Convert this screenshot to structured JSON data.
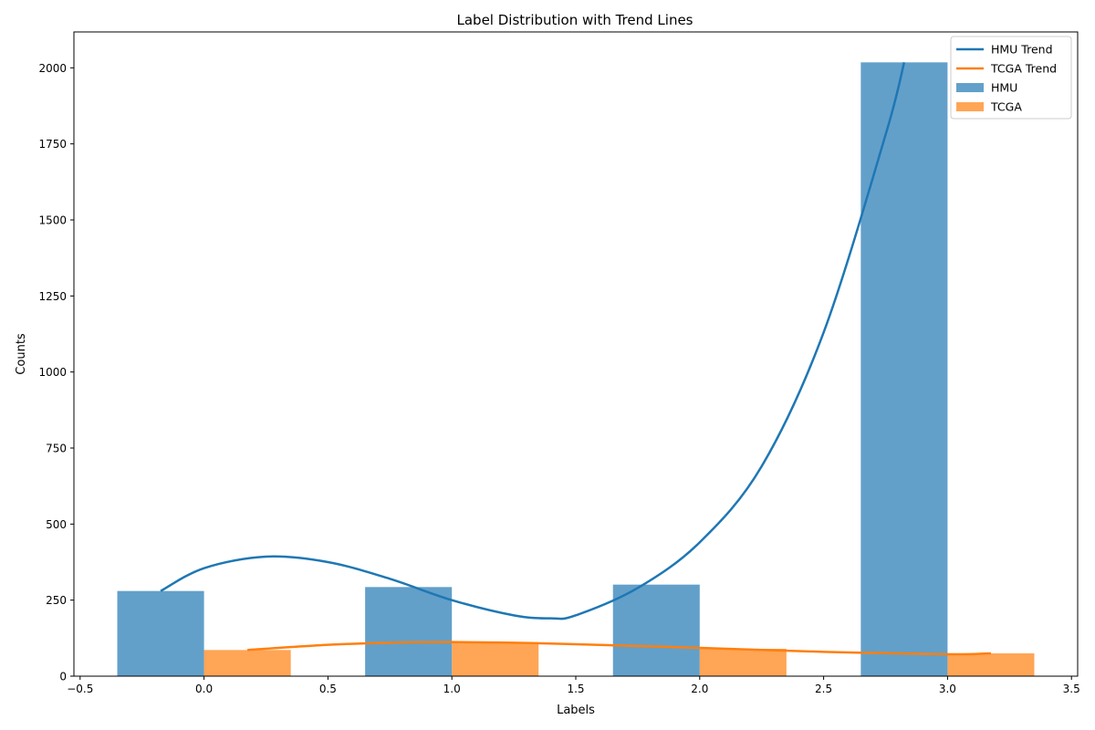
{
  "chart_data": {
    "type": "bar",
    "title": "Label Distribution with Trend Lines",
    "xlabel": "Labels",
    "ylabel": "Counts",
    "xlim": [
      -0.525,
      3.525
    ],
    "ylim": [
      0,
      2118
    ],
    "x_ticks": [
      -0.5,
      0.0,
      0.5,
      1.0,
      1.5,
      2.0,
      2.5,
      3.0,
      3.5
    ],
    "x_tick_labels": [
      "−0.5",
      "0.0",
      "0.5",
      "1.0",
      "1.5",
      "2.0",
      "2.5",
      "3.0",
      "3.5"
    ],
    "y_ticks": [
      0,
      250,
      500,
      750,
      1000,
      1250,
      1500,
      1750,
      2000
    ],
    "y_tick_labels": [
      "0",
      "250",
      "500",
      "750",
      "1000",
      "1250",
      "1500",
      "1750",
      "2000"
    ],
    "categories": [
      0,
      1,
      2,
      3
    ],
    "bar_width": 0.35,
    "grid": false,
    "legend_position": "top-right",
    "series": [
      {
        "name": "HMU",
        "kind": "bar",
        "x": [
          -0.175,
          0.825,
          1.825,
          2.825
        ],
        "values": [
          280,
          293,
          301,
          2018
        ],
        "color": "#1f77b4",
        "opacity": 0.7
      },
      {
        "name": "TCGA",
        "kind": "bar",
        "x": [
          0.175,
          1.175,
          2.175,
          3.175
        ],
        "values": [
          86,
          110,
          90,
          75
        ],
        "color": "#ff7f0e",
        "opacity": 0.7
      },
      {
        "name": "HMU Trend",
        "kind": "line",
        "x": [
          -0.175,
          0.0,
          0.25,
          0.5,
          0.75,
          1.0,
          1.25,
          1.4,
          1.5,
          1.75,
          2.0,
          2.25,
          2.5,
          2.75,
          2.825
        ],
        "values": [
          280,
          355,
          393,
          375,
          320,
          250,
          200,
          190,
          200,
          290,
          440,
          690,
          1130,
          1780,
          2018
        ],
        "color": "#1f77b4"
      },
      {
        "name": "TCGA Trend",
        "kind": "line",
        "x": [
          0.175,
          0.5,
          0.75,
          1.0,
          1.25,
          1.5,
          2.0,
          2.5,
          3.0,
          3.175
        ],
        "values": [
          86,
          103,
          110,
          112,
          110,
          105,
          93,
          80,
          72,
          75
        ],
        "color": "#ff7f0e"
      }
    ],
    "legend": [
      "HMU Trend",
      "TCGA Trend",
      "HMU",
      "TCGA"
    ]
  }
}
